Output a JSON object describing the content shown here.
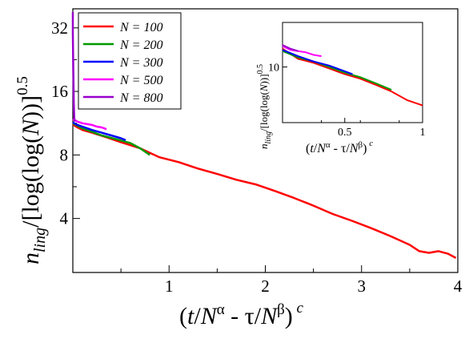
{
  "chart_data": [
    {
      "type": "line",
      "panel": "main",
      "xlabel": "(t/N^α - τ/N^β)^c",
      "ylabel": "n_ling/[log(log(N))]^0.5",
      "xlim": [
        0,
        4
      ],
      "ylim_log2": [
        1.15,
        5.3
      ],
      "yscale": "log",
      "grid": false,
      "legend_position": "top-left",
      "x_ticks": [
        "1",
        "2",
        "3",
        "4"
      ],
      "x_tick_values": [
        1,
        2,
        3,
        4
      ],
      "y_ticks": [
        "4",
        "8",
        "16",
        "32"
      ],
      "y_tick_values": [
        4,
        8,
        16,
        32
      ],
      "series": [
        {
          "name": "N = 100",
          "color": "#ff0000",
          "x": [
            0.0,
            0.02,
            0.05,
            0.1,
            0.2,
            0.35,
            0.5,
            0.7,
            0.9,
            1.1,
            1.3,
            1.5,
            1.7,
            1.9,
            2.1,
            2.3,
            2.5,
            2.7,
            2.9,
            3.1,
            3.3,
            3.5,
            3.6,
            3.7,
            3.8,
            3.9,
            3.98
          ],
          "y": [
            11.2,
            11.0,
            10.8,
            10.5,
            10.2,
            9.7,
            9.2,
            8.6,
            7.8,
            7.4,
            6.9,
            6.5,
            6.1,
            5.8,
            5.4,
            5.0,
            4.6,
            4.2,
            3.9,
            3.6,
            3.3,
            3.0,
            2.8,
            2.75,
            2.8,
            2.72,
            2.6
          ]
        },
        {
          "name": "N = 200",
          "color": "#009900",
          "x": [
            0.0,
            0.05,
            0.1,
            0.2,
            0.3,
            0.45,
            0.6,
            0.7,
            0.8
          ],
          "y": [
            11.3,
            11.0,
            10.7,
            10.3,
            9.9,
            9.5,
            9.1,
            8.6,
            8.0
          ]
        },
        {
          "name": "N = 300",
          "color": "#0000ff",
          "x": [
            0.0,
            0.05,
            0.1,
            0.2,
            0.3,
            0.4,
            0.5,
            0.55
          ],
          "y": [
            11.4,
            11.1,
            10.9,
            10.5,
            10.2,
            9.9,
            9.6,
            9.4
          ]
        },
        {
          "name": "N = 500",
          "color": "#ff00ff",
          "x": [
            0.0,
            0.05,
            0.1,
            0.15,
            0.2,
            0.25,
            0.3,
            0.35
          ],
          "y": [
            11.8,
            11.5,
            11.3,
            11.2,
            11.1,
            10.9,
            10.8,
            10.6
          ]
        },
        {
          "name": "N = 800",
          "color": "#9900cc",
          "x": [
            0.0,
            0.0,
            0.005,
            0.01,
            0.015,
            0.02
          ],
          "y": [
            38.0,
            30.0,
            20.0,
            14.0,
            12.0,
            11.5
          ]
        }
      ]
    },
    {
      "type": "line",
      "panel": "inset",
      "xlabel": "(t/N^α - τ/N^β)^c",
      "ylabel": "n_ling/[log(log(N))]^0.5",
      "xlim": [
        0.1,
        1
      ],
      "ylim_log2": [
        2.75,
        3.78
      ],
      "yscale": "log",
      "grid": false,
      "x_ticks": [
        "0.5",
        "1"
      ],
      "x_tick_values": [
        0.5,
        1
      ],
      "y_ticks": [
        "10"
      ],
      "y_tick_values": [
        10
      ],
      "series": [
        {
          "name": "N = 100",
          "color": "#ff0000",
          "x": [
            0.1,
            0.2,
            0.3,
            0.4,
            0.5,
            0.6,
            0.7,
            0.8,
            0.9,
            1.0
          ],
          "y": [
            11.4,
            10.6,
            10.3,
            9.9,
            9.5,
            9.2,
            8.8,
            8.4,
            7.9,
            7.6
          ]
        },
        {
          "name": "N = 200",
          "color": "#009900",
          "x": [
            0.1,
            0.2,
            0.3,
            0.4,
            0.5,
            0.6,
            0.7,
            0.8
          ],
          "y": [
            11.2,
            10.7,
            10.4,
            10.0,
            9.6,
            9.3,
            8.9,
            8.5
          ]
        },
        {
          "name": "N = 300",
          "color": "#0000ff",
          "x": [
            0.1,
            0.2,
            0.3,
            0.4,
            0.5,
            0.55
          ],
          "y": [
            11.3,
            10.8,
            10.4,
            10.1,
            9.7,
            9.5
          ]
        },
        {
          "name": "N = 500",
          "color": "#ff00ff",
          "x": [
            0.1,
            0.15,
            0.2,
            0.25,
            0.3,
            0.35
          ],
          "y": [
            11.6,
            11.3,
            11.2,
            11.1,
            10.9,
            10.8
          ]
        },
        {
          "name": "N = 800",
          "color": "#9900cc",
          "x": [
            0.1,
            0.15,
            0.2
          ],
          "y": [
            11.7,
            11.4,
            11.2
          ]
        }
      ]
    }
  ]
}
